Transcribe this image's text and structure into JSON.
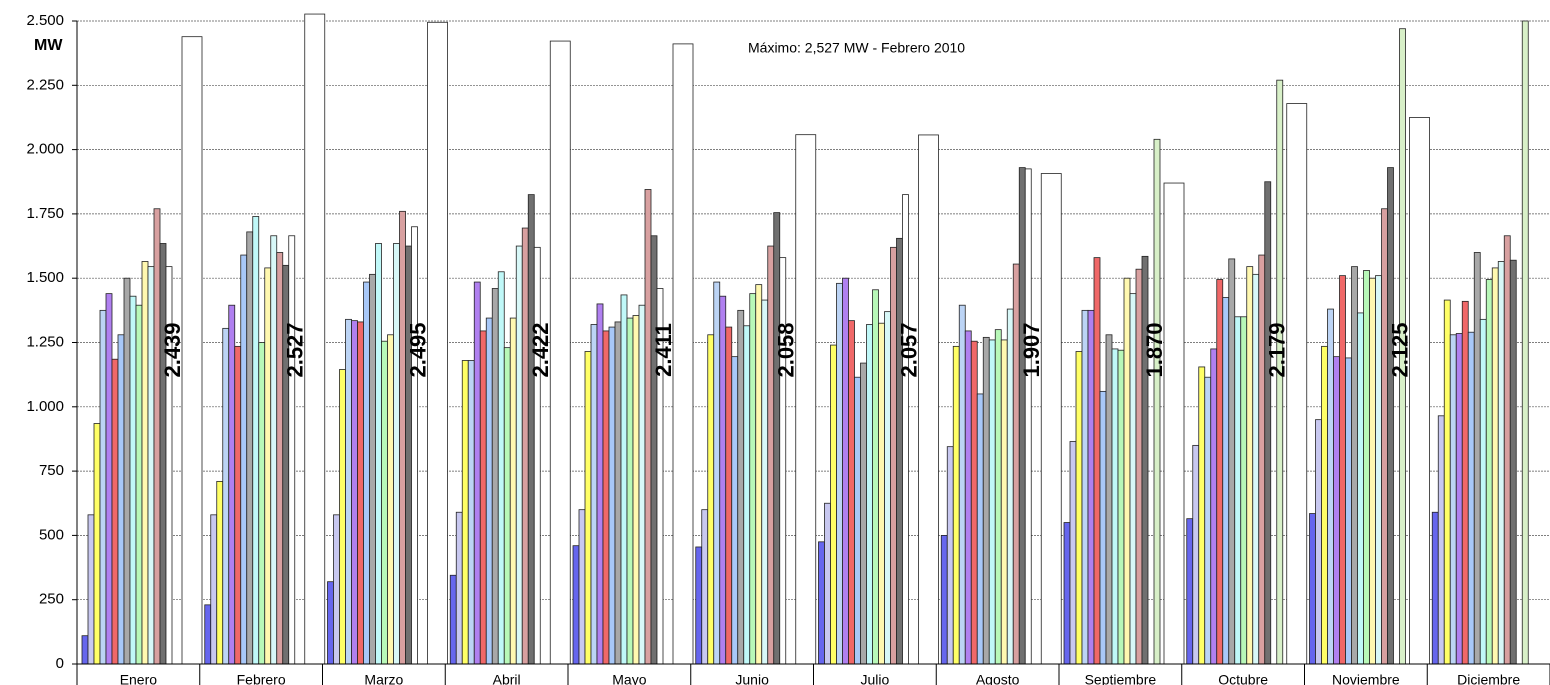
{
  "chart_data": {
    "type": "bar",
    "y_label": "MW",
    "annotation": "Máximo: 2,527 MW - Febrero 2010",
    "categories": [
      "Enero",
      "Febrero",
      "Marzo",
      "Abril",
      "Mayo",
      "Junio",
      "Julio",
      "Agosto",
      "Septiembre",
      "Octubre",
      "Noviembre",
      "Diciembre"
    ],
    "ylim": [
      0,
      2500
    ],
    "yticks": [
      0,
      250,
      500,
      750,
      {
        "value": 1000,
        "label": "1.000"
      },
      {
        "value": 1250,
        "label": "1.250"
      },
      {
        "value": 1500,
        "label": "1.500"
      },
      {
        "value": 1750,
        "label": "1.750"
      },
      {
        "value": 2000,
        "label": "2.000"
      },
      {
        "value": 2250,
        "label": "2.250"
      },
      {
        "value": 2500,
        "label": "2.500"
      }
    ],
    "grid": true,
    "series": [
      {
        "color": "#6666ee",
        "values": [
          110,
          230,
          320,
          345,
          460,
          455,
          475,
          500,
          550,
          565,
          585,
          590
        ]
      },
      {
        "color": "#c8c8f0",
        "values": [
          580,
          580,
          580,
          590,
          600,
          600,
          625,
          845,
          865,
          850,
          950,
          965
        ]
      },
      {
        "color": "#ffff66",
        "values": [
          935,
          710,
          1145,
          1180,
          1215,
          1280,
          1240,
          1235,
          1215,
          1155,
          1235,
          1415
        ]
      },
      {
        "color": "#bcd4f5",
        "values": [
          1375,
          1305,
          1340,
          1180,
          1320,
          1485,
          1480,
          1395,
          1375,
          1115,
          1380,
          1280
        ]
      },
      {
        "color": "#b080f0",
        "values": [
          1440,
          1395,
          1335,
          1485,
          1400,
          1430,
          1500,
          1295,
          1375,
          1225,
          1195,
          1285
        ]
      },
      {
        "color": "#f06868",
        "values": [
          1185,
          1235,
          1330,
          1295,
          1295,
          1310,
          1335,
          1255,
          1580,
          1495,
          1510,
          1410
        ]
      },
      {
        "color": "#a8c8f8",
        "values": [
          1280,
          1590,
          1485,
          1345,
          1310,
          1195,
          1115,
          1050,
          1060,
          1425,
          1190,
          1290
        ]
      },
      {
        "color": "#a8a8a8",
        "values": [
          1500,
          1680,
          1515,
          1460,
          1330,
          1375,
          1170,
          1270,
          1280,
          1575,
          1545,
          1600
        ]
      },
      {
        "color": "#c0f8f8",
        "values": [
          1430,
          1740,
          1635,
          1525,
          1435,
          1315,
          1320,
          1260,
          1225,
          1350,
          1365,
          1340
        ]
      },
      {
        "color": "#b8f8b8",
        "values": [
          1395,
          1250,
          1255,
          1230,
          1345,
          1440,
          1455,
          1300,
          1220,
          1350,
          1530,
          1495
        ]
      },
      {
        "color": "#fff8b0",
        "values": [
          1565,
          1540,
          1280,
          1345,
          1355,
          1475,
          1325,
          1260,
          1500,
          1545,
          1500,
          1540
        ]
      },
      {
        "color": "#d8f8f8",
        "values": [
          1545,
          1665,
          1635,
          1625,
          1395,
          1415,
          1370,
          1380,
          1440,
          1515,
          1510,
          1565
        ]
      },
      {
        "color": "#d8a0a0",
        "values": [
          1770,
          1600,
          1760,
          1695,
          1845,
          1625,
          1620,
          1555,
          1535,
          1590,
          1770,
          1665
        ]
      },
      {
        "color": "#707070",
        "values": [
          1635,
          1550,
          1625,
          1825,
          1665,
          1755,
          1655,
          1930,
          1585,
          1875,
          1930,
          1570
        ]
      },
      {
        "color": "#ffffff",
        "values": [
          1545,
          1665,
          1700,
          1620,
          1460,
          1580,
          1825,
          1925,
          null,
          null,
          null,
          null
        ]
      },
      {
        "color": "#d8f0c8",
        "values": [
          null,
          null,
          null,
          null,
          null,
          null,
          null,
          null,
          2040,
          2270,
          2470,
          2500
        ]
      },
      {
        "color": "#ffffff",
        "values": [
          2439,
          2527,
          2495,
          2422,
          2411,
          2058,
          2057,
          1907,
          1870,
          2179,
          2125,
          null
        ],
        "value_labels": [
          "2.439",
          "2.527",
          "2.495",
          "2.422",
          "2.411",
          "2.058",
          "2.057",
          "1.907",
          "1.870",
          "2.179",
          "2.125",
          null
        ]
      }
    ]
  }
}
